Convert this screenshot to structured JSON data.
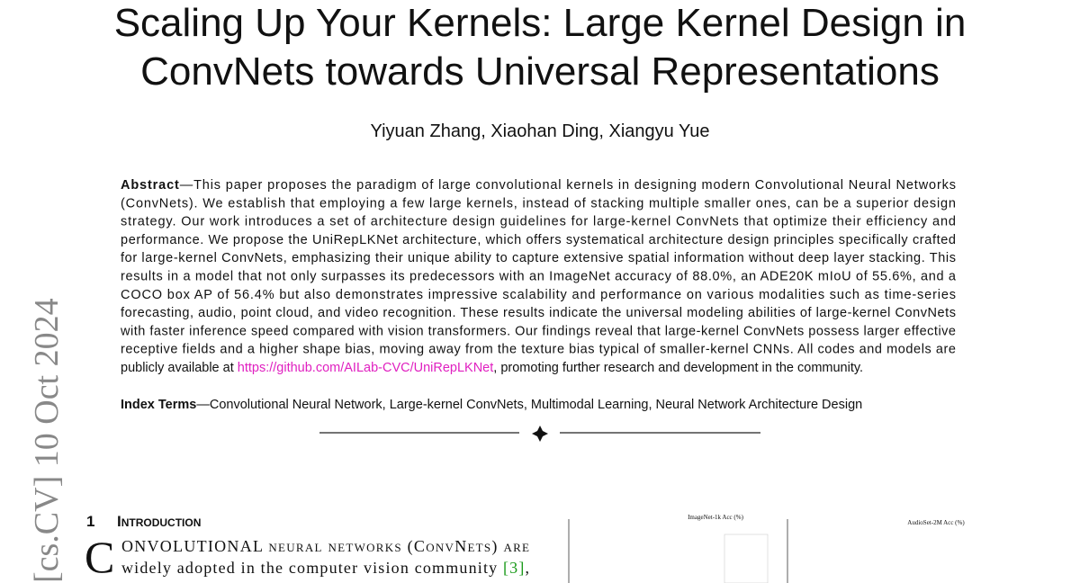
{
  "header": {
    "title_lines": [
      "Scaling Up Your Kernels: Large Kernel Design in",
      "ConvNets towards Universal Representations"
    ],
    "authors": "Yiyuan Zhang, Xiaohan Ding, Xiangyu Yue"
  },
  "abstract": {
    "label": "Abstract",
    "lines": [
      "—This paper proposes the paradigm of large convolutional kernels in designing modern Convolutional Neural Networks",
      "(ConvNets). We establish that employing a few large kernels, instead of stacking multiple smaller ones, can be a superior design",
      "strategy. Our work introduces a set of architecture design guidelines for large-kernel ConvNets that optimize their efficiency and",
      "performance. We propose the UniRepLKNet architecture, which offers systematical architecture design principles specifically crafted",
      "for large-kernel ConvNets, emphasizing their unique ability to capture extensive spatial information without deep layer stacking. This",
      "results in a model that not only surpasses its predecessors with an ImageNet accuracy of 88.0%, an ADE20K mIoU of 55.6%, and a",
      "COCO box AP of 56.4% but also demonstrates impressive scalability and performance on various modalities such as time-series",
      "forecasting, audio, point cloud, and video recognition. These results indicate the universal modeling abilities of large-kernel ConvNets",
      "with faster inference speed compared with vision transformers. Our findings reveal that large-kernel ConvNets possess larger effective",
      "receptive fields and a higher shape bias, moving away from the texture bias typical of smaller-kernel CNNs. All codes and models are"
    ],
    "last_line": {
      "before": "publicly available at ",
      "link": "https://github.com/AILab-CVC/UniRepLKNet",
      "after": ", promoting further research and development in the community."
    }
  },
  "index_terms": {
    "label": "Index Terms",
    "text": "—Convolutional Neural Network, Large-kernel ConvNets, Multimodal Learning, Neural Network Architecture Design"
  },
  "arxiv_stamp": "[cs.CV]  10 Oct 2024",
  "section": {
    "number": "1",
    "title": "Introduction",
    "drop_cap": "C",
    "line1": "ONVOLUTIONAL neural networks (ConvNets) are",
    "line2": {
      "text": "widely adopted in the computer vision community ",
      "cite": "[3]",
      "end": ","
    }
  },
  "figure": {
    "left_title": "ImageNet-1k Acc (%)",
    "right_title": "AudioSet-2M Acc (%)"
  }
}
